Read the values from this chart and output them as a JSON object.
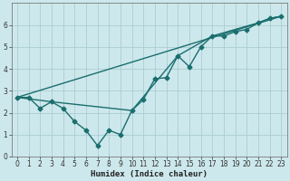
{
  "xlabel": "Humidex (Indice chaleur)",
  "bg_color": "#cde8ec",
  "grid_color": "#aacdd4",
  "line_color": "#1a6e6e",
  "xlim": [
    -0.5,
    23.5
  ],
  "ylim": [
    0,
    7
  ],
  "xticks": [
    0,
    1,
    2,
    3,
    4,
    5,
    6,
    7,
    8,
    9,
    10,
    11,
    12,
    13,
    14,
    15,
    16,
    17,
    18,
    19,
    20,
    21,
    22,
    23
  ],
  "yticks": [
    0,
    1,
    2,
    3,
    4,
    5,
    6
  ],
  "series_zigzag": {
    "x": [
      0,
      1,
      2,
      3,
      4,
      5,
      6,
      7,
      8,
      9,
      10,
      11,
      12,
      13,
      14,
      15,
      16,
      17,
      18,
      19,
      20,
      21,
      22,
      23
    ],
    "y": [
      2.7,
      2.7,
      2.2,
      2.5,
      2.2,
      1.6,
      1.2,
      0.5,
      1.2,
      1.0,
      2.1,
      2.6,
      3.55,
      3.6,
      4.6,
      4.1,
      5.0,
      5.5,
      5.5,
      5.7,
      5.8,
      6.1,
      6.3,
      6.4
    ]
  },
  "series_straight": {
    "x": [
      0,
      23
    ],
    "y": [
      2.7,
      6.4
    ]
  },
  "series_curve": {
    "x": [
      0,
      3,
      10,
      14,
      17,
      21,
      22,
      23
    ],
    "y": [
      2.7,
      2.5,
      2.1,
      4.6,
      5.5,
      6.1,
      6.3,
      6.4
    ]
  },
  "xlabel_fontsize": 6.5,
  "tick_fontsize": 5.5
}
